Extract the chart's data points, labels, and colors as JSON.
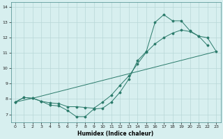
{
  "xlabel": "Humidex (Indice chaleur)",
  "bg_color": "#d7efef",
  "grid_color": "#b8d8d8",
  "line_color": "#2a7a6a",
  "xlim": [
    -0.5,
    23.5
  ],
  "ylim": [
    6.5,
    14.3
  ],
  "xticks": [
    0,
    1,
    2,
    3,
    4,
    5,
    6,
    7,
    8,
    9,
    10,
    11,
    12,
    13,
    14,
    15,
    16,
    17,
    18,
    19,
    20,
    21,
    22,
    23
  ],
  "yticks": [
    7,
    8,
    9,
    10,
    11,
    12,
    13,
    14
  ],
  "line1_x": [
    0,
    1,
    2,
    3,
    4,
    5,
    6,
    7,
    8,
    9,
    10,
    11,
    12,
    13,
    14,
    15,
    16,
    17,
    18,
    19,
    20,
    21,
    22
  ],
  "line1_y": [
    7.8,
    8.1,
    8.05,
    7.85,
    7.6,
    7.55,
    7.25,
    6.85,
    6.85,
    7.35,
    7.4,
    7.8,
    8.45,
    9.3,
    10.5,
    11.1,
    13.0,
    13.5,
    13.1,
    13.1,
    12.45,
    12.1,
    11.5
  ],
  "line2_x": [
    0,
    1,
    2,
    3,
    4,
    5,
    6,
    7,
    8,
    9,
    10,
    11,
    12,
    13,
    14,
    15,
    16,
    17,
    18,
    19,
    20,
    21,
    22,
    23
  ],
  "line2_y": [
    7.8,
    8.1,
    8.05,
    7.85,
    7.75,
    7.7,
    7.5,
    7.5,
    7.45,
    7.4,
    7.8,
    8.25,
    8.9,
    9.5,
    10.3,
    11.05,
    11.6,
    12.0,
    12.3,
    12.5,
    12.4,
    12.1,
    12.0,
    11.1
  ],
  "line3_x": [
    0,
    2,
    23
  ],
  "line3_y": [
    7.8,
    8.05,
    11.1
  ]
}
